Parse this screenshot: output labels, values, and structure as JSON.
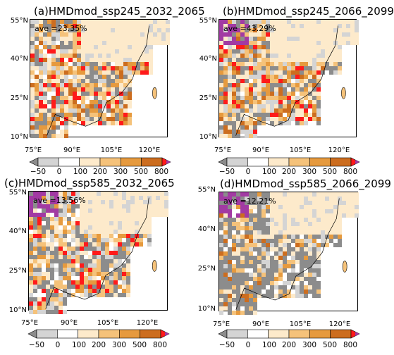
{
  "colorbar": {
    "labels": [
      "−50",
      "0",
      "100",
      "200",
      "300",
      "500",
      "800"
    ],
    "colors": [
      "#d4d4d4",
      "#ffffff",
      "#fdeacb",
      "#f5c27a",
      "#e69a3e",
      "#cc6d1f",
      "#ff1a1a"
    ],
    "low_color": "#8c8c8c",
    "high_color": "#a23aa3"
  },
  "axes": {
    "lat_labels": [
      "55°N",
      "40°N",
      "25°N",
      "10°N"
    ],
    "lon_labels": [
      "75°E",
      "90°E",
      "105°E",
      "120°E"
    ]
  },
  "panels": [
    {
      "title": "(a)HMDmod_ssp245_2032_2065",
      "ave": "ave =23.35%"
    },
    {
      "title": "(b)HMDmod_ssp245_2066_2099",
      "ave": "ave =43.29%"
    },
    {
      "title": "(c)HMDmod_ssp585_2032_2065",
      "ave": "ave =13.56%"
    },
    {
      "title": "(d)HMDmod_ssp585_2066_2099",
      "ave": "ave =12.21%"
    }
  ]
}
